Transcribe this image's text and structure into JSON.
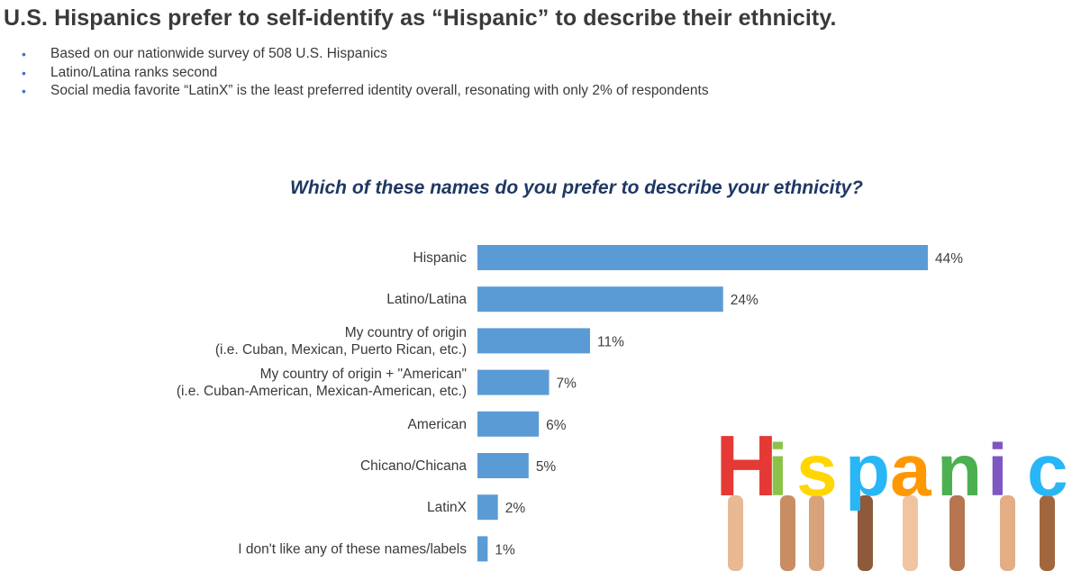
{
  "page": {
    "title": "U.S. Hispanics prefer to self-identify as “Hispanic” to describe their ethnicity.",
    "bullets": [
      "Based on our nationwide survey of 508 U.S. Hispanics",
      "Latino/Latina ranks second",
      "Social media favorite “LatinX” is the least preferred identity overall, resonating with only 2% of respondents"
    ],
    "bullet_color": "#4472c4",
    "photo": {
      "word": "Hispanic",
      "letter_colors": [
        "#e53935",
        "#8bc34a",
        "#ffd600",
        "#29b6f6",
        "#ff9800",
        "#4caf50",
        "#7e57c2",
        "#29b6f6"
      ]
    }
  },
  "chart_data": {
    "type": "bar",
    "orientation": "horizontal",
    "title": "Which of these names do you prefer to describe your ethnicity?",
    "categories": [
      [
        "Hispanic"
      ],
      [
        "Latino/Latina"
      ],
      [
        "My country of origin",
        "(i.e. Cuban, Mexican, Puerto Rican, etc.)"
      ],
      [
        "My country of origin + \"American\"",
        "(i.e. Cuban-American, Mexican-American, etc.)"
      ],
      [
        "American"
      ],
      [
        "Chicano/Chicana"
      ],
      [
        "LatinX"
      ],
      [
        "I don't like any of these names/labels"
      ]
    ],
    "values": [
      44,
      24,
      11,
      7,
      6,
      5,
      2,
      1
    ],
    "value_labels": [
      "44%",
      "24%",
      "11%",
      "7%",
      "6%",
      "5%",
      "2%",
      "1%"
    ],
    "unit": "%",
    "bar_color": "#5b9bd5",
    "xlim": [
      0,
      44
    ],
    "grid": false,
    "legend": "none"
  }
}
